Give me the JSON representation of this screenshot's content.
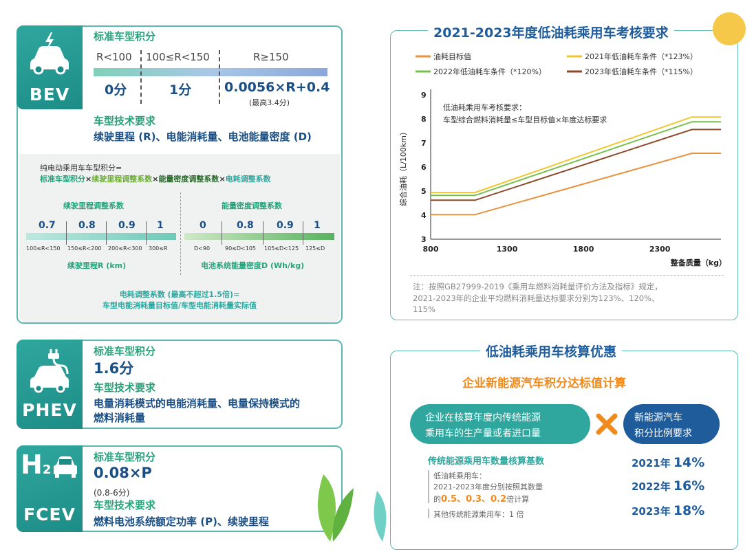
{
  "bev": {
    "tile_label": "BEV",
    "std_title": "标准车型积分",
    "ranges": [
      "R<100",
      "100≤R<150",
      "R≥150"
    ],
    "scores": [
      "0分",
      "1分",
      "0.0056×R+0.4"
    ],
    "cap_note": "(最高3.4分)",
    "tech_title": "车型技术要求",
    "tech_desc": "续驶里程 (R)、电能消耗量、电池能量密度 (D)",
    "formula_line1": "纯电动乘用车车型积分=",
    "formula_parts": [
      "标准车型积分",
      "×",
      "续驶里程调整系数",
      "×",
      "能量密度调整系数",
      "×",
      "电耗调整系数"
    ],
    "range_coef": {
      "title": "续驶里程调整系数",
      "values": [
        "0.7",
        "0.8",
        "0.9",
        "1"
      ],
      "bins": [
        "100≤R<150",
        "150≤R<200",
        "200≤R<300",
        "300≤R"
      ],
      "axis": "续驶里程R (km)"
    },
    "density_coef": {
      "title": "能量密度调整系数",
      "values": [
        "0",
        "0.8",
        "0.9",
        "1"
      ],
      "bins": [
        "D<90",
        "90≤D<105",
        "105≤D<125",
        "125≤D"
      ],
      "axis": "电池系统能量密度D (Wh/kg)"
    },
    "power_note_1": "电耗调整系数 (最高不超过1.5倍)=",
    "power_note_2": "车型电能消耗量目标值/车型电能消耗量实际值"
  },
  "phev": {
    "tile_label": "PHEV",
    "std_title": "标准车型积分",
    "score": "1.6分",
    "tech_title": "车型技术要求",
    "tech_line1": "电量消耗模式的电能消耗量、电量保持模式的",
    "tech_line2": "燃料消耗量"
  },
  "fcev": {
    "tile_h": "H",
    "tile_sub": "2",
    "tile_label": "FCEV",
    "std_title": "标准车型积分",
    "score": "0.08×P",
    "range": "(0.8-6分)",
    "tech_title": "车型技术要求",
    "tech_desc": "燃料电池系统额定功率 (P)、续驶里程"
  },
  "chart_section": {
    "title": "2021-2023年度低油耗乘用车考核要求",
    "annotation_1": "低油耗乘用车考核要求：",
    "annotation_2": "车型综合燃料消耗量≤车型目标值×年度达标要求",
    "note_1": "注：按照GB27999-2019《乘用车燃料消耗量评价方法及指标》规定，",
    "note_2": "2021-2023年的企业平均燃料消耗量达标要求分别为123%、120%、",
    "note_3": "115%"
  },
  "chart_data": {
    "type": "line",
    "xlabel": "整备质量（kg）",
    "ylabel": "综合油耗（L/100km）",
    "xlim": [
      800,
      2700
    ],
    "ylim": [
      3,
      9
    ],
    "xticks": [
      "800",
      "1300",
      "1800",
      "2300"
    ],
    "yticks": [
      "3",
      "4",
      "5",
      "6",
      "7",
      "8",
      "9"
    ],
    "x": [
      800,
      1090,
      2510,
      2700
    ],
    "legend_position": "top",
    "grid": false,
    "series": [
      {
        "name": "油耗目标值",
        "color": "#e8913e",
        "values": [
          4.02,
          4.02,
          6.57,
          6.57
        ]
      },
      {
        "name": "2021年低油耗车条件（*123%）",
        "color": "#f2c531",
        "values": [
          4.94,
          4.94,
          8.08,
          8.08
        ]
      },
      {
        "name": "2022年低油耗车条件（*120%）",
        "color": "#79bf4e",
        "values": [
          4.82,
          4.82,
          7.88,
          7.88
        ]
      },
      {
        "name": "2023年低油耗车条件（*115%）",
        "color": "#8a4a2a",
        "values": [
          4.62,
          4.62,
          7.56,
          7.56
        ]
      }
    ]
  },
  "benefit": {
    "title": "低油耗乘用车核算优惠",
    "subtitle": "企业新能源汽车积分达标值计算",
    "left_pill_1": "企业在核算年度内传统能源",
    "left_pill_2": "乘用车的生产量或者进口量",
    "right_pill_1": "新能源汽车",
    "right_pill_2": "积分比例要求",
    "base_title": "传统能源乘用车数量核算基数",
    "low_1": "低油耗乘用车：",
    "low_2": "2021-2023年度分别按照其数量",
    "low_3_prefix": "的",
    "low_3_values": "0.5、0.3、0.2",
    "low_3_suffix": "倍计算",
    "other": "其他传统能源乘用车：1 倍",
    "years": [
      {
        "year": "2021年",
        "pct": "14%"
      },
      {
        "year": "2022年",
        "pct": "16%"
      },
      {
        "year": "2023年",
        "pct": "18%"
      }
    ]
  },
  "colors": {
    "teal": "#2fa79e",
    "navy": "#1f5c9c",
    "orange": "#f08a1d",
    "green": "#27a37c"
  }
}
